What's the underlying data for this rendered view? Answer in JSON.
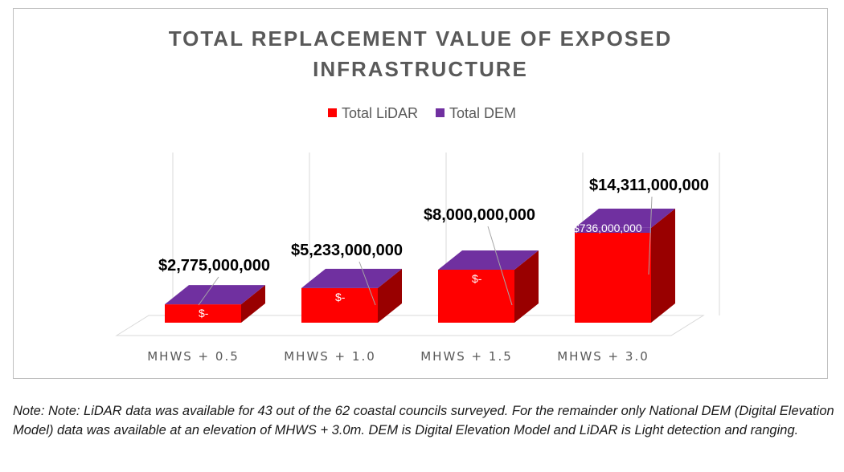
{
  "chart_data": {
    "type": "bar",
    "title_lines": [
      "TOTAL REPLACEMENT VALUE OF EXPOSED",
      "INFRASTRUCTURE"
    ],
    "categories": [
      "MHWS + 0.5",
      "MHWS + 1.0",
      "MHWS + 1.5",
      "MHWS + 3.0"
    ],
    "series": [
      {
        "name": "Total LiDAR",
        "color": "#ff0000",
        "values": [
          2775000000,
          5233000000,
          8000000000,
          13575000000
        ]
      },
      {
        "name": "Total DEM",
        "color": "#7030a0",
        "values": [
          0,
          0,
          0,
          736000000
        ]
      }
    ],
    "total_labels": [
      "$2,775,000,000",
      "$5,233,000,000",
      "$8,000,000,000",
      "$14,311,000,000"
    ],
    "dem_labels": [
      "$-",
      "$-",
      "$-",
      "$736,000,000"
    ],
    "ylim": [
      0,
      14311000000
    ],
    "legend_position": "top-center"
  },
  "footnote": "Note: Note: LiDAR data was available for 43 out of the 62 coastal councils surveyed. For the remainder only National DEM (Digital Elevation Model) data was available at an elevation of MHWS + 3.0m.  DEM is Digital Elevation Model and LiDAR is Light detection and ranging."
}
